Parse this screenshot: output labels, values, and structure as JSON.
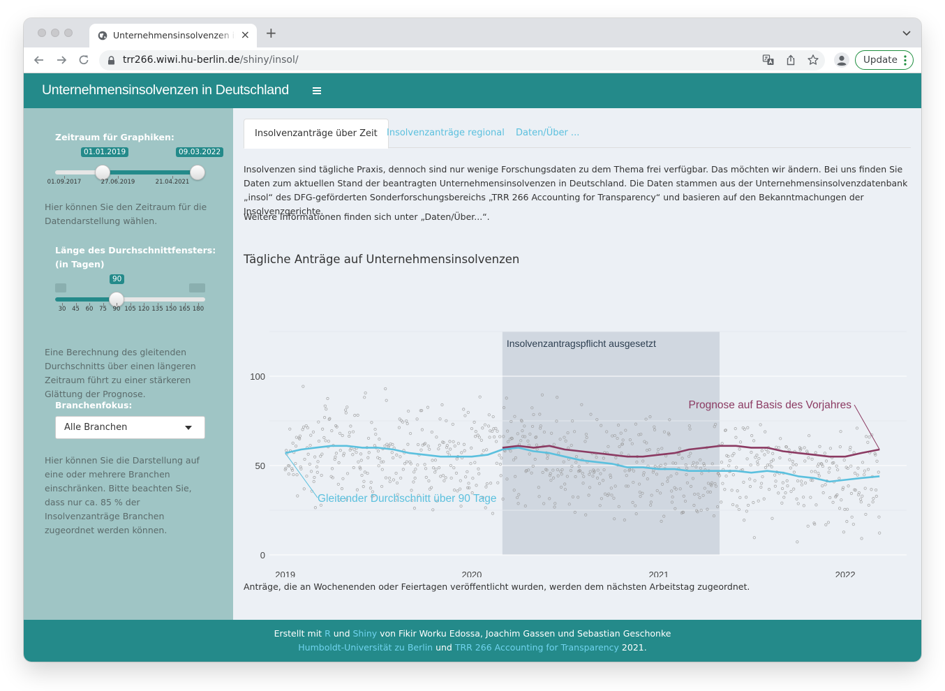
{
  "browser": {
    "tab_title": "Unternehmensinsolvenzen in Deutschland",
    "tab_close": "×",
    "new_tab": "+",
    "url_host": "trr266.wiwi.hu-berlin.de",
    "url_path": "/shiny/insol/",
    "update_label": "Update"
  },
  "app": {
    "title": "Unternehmensinsolvenzen in Deutschland"
  },
  "sidebar": {
    "date_range": {
      "label": "Zeitraum für Graphiken:",
      "from": "01.01.2019",
      "to": "09.03.2022",
      "ticks": [
        "01.09.2017",
        "27.06.2019",
        "21.04.2021"
      ],
      "help": "Hier können Sie den Zeitraum für die Datendarstellung wählen."
    },
    "window": {
      "label_line1": "Länge des Durchschnittfensters:",
      "label_line2": "(in Tagen)",
      "value": "90",
      "ticks": [
        "30",
        "45",
        "60",
        "75",
        "90",
        "105",
        "120",
        "135",
        "150",
        "165",
        "180"
      ],
      "help": "Eine Berechnung des gleitenden Durchschnitts über einen längeren Zeitraum führt zu einer stärkeren Glättung der Prognose."
    },
    "branch": {
      "label": "Branchenfokus:",
      "value": "Alle Branchen",
      "help": "Hier können Sie die Darstellung auf eine oder mehrere Branchen einschränken. Bitte beachten Sie, dass nur ca. 85 % der Insolvenzanträge Branchen zugeordnet werden können."
    }
  },
  "main": {
    "tabs": [
      "Insolvenzanträge über Zeit",
      "Insolvenzanträge regional",
      "Daten/Über ..."
    ],
    "intro": "Insolvenzen sind tägliche Praxis, dennoch sind nur wenige Forschungsdaten zu dem Thema frei verfügbar. Das möchten wir ändern. Bei uns finden Sie Daten zum aktuellen Stand der beantragten Unternehmensinsolvenzen in Deutschland. Die Daten stammen aus der Unternehmensinsolvenzdatenbank „insol“ des DFG-geförderten Sonderforschungsbereichs „TRR 266 Accounting for Transparency“ und basieren auf den Bekanntmachungen der Insolvenzgerichte.",
    "more": "Weitere Informationen finden sich unter „Daten/Über...“.",
    "chart_title": "Tägliche Anträge auf Unternehmensinsolvenzen",
    "note": "Anträge, die an Wochenenden oder Feiertagen veröffentlicht wurden, werden dem nächsten Arbeitstag zugeordnet."
  },
  "footer": {
    "l1_a": "Erstellt mit ",
    "l1_r": "R",
    "l1_b": " und ",
    "l1_shiny": "Shiny",
    "l1_c": " von Fikir Worku Edossa, Joachim Gassen und Sebastian Geschonke",
    "l2_hu": "Humboldt-Universität zu Berlin",
    "l2_b": " und ",
    "l2_trr": "TRR 266 Accounting for Transparency",
    "l2_c": " 2021."
  },
  "colors": {
    "header": "#248a8a",
    "sidebar": "#9fc5c5",
    "moving_average": "#5bc0de",
    "forecast": "#8b3a62",
    "shaded_period": "#d0d7e0"
  },
  "chart_data": {
    "type": "line",
    "title": "Tägliche Anträge auf Unternehmensinsolvenzen",
    "x_ticks": [
      "2019",
      "2020",
      "2021",
      "2022"
    ],
    "y_ticks": [
      0,
      50,
      100
    ],
    "ylim": [
      0,
      125
    ],
    "xlim": [
      "2019-01-01",
      "2022-03-09"
    ],
    "shaded_region": {
      "label": "Insolvenzantragspflicht ausgesetzt",
      "start": "2020-03-01",
      "end": "2021-04-30"
    },
    "series": [
      {
        "name": "Gleitender Durchschnitt über 90 Tage",
        "color": "#5bc0de",
        "points": [
          [
            "2019-01-01",
            57
          ],
          [
            "2019-02-01",
            59
          ],
          [
            "2019-03-01",
            60
          ],
          [
            "2019-04-01",
            61
          ],
          [
            "2019-05-01",
            61
          ],
          [
            "2019-06-01",
            60
          ],
          [
            "2019-07-01",
            60
          ],
          [
            "2019-08-01",
            59
          ],
          [
            "2019-09-01",
            57
          ],
          [
            "2019-10-01",
            56
          ],
          [
            "2019-11-01",
            55
          ],
          [
            "2019-12-01",
            55
          ],
          [
            "2020-01-01",
            55
          ],
          [
            "2020-02-01",
            56
          ],
          [
            "2020-03-01",
            59
          ],
          [
            "2020-04-01",
            60
          ],
          [
            "2020-05-01",
            58
          ],
          [
            "2020-06-01",
            57
          ],
          [
            "2020-07-01",
            55
          ],
          [
            "2020-08-01",
            53
          ],
          [
            "2020-09-01",
            52
          ],
          [
            "2020-10-01",
            51
          ],
          [
            "2020-11-01",
            49
          ],
          [
            "2020-12-01",
            49
          ],
          [
            "2021-01-01",
            48
          ],
          [
            "2021-02-01",
            48
          ],
          [
            "2021-03-01",
            47
          ],
          [
            "2021-04-01",
            47
          ],
          [
            "2021-05-01",
            47
          ],
          [
            "2021-06-01",
            47
          ],
          [
            "2021-07-01",
            46
          ],
          [
            "2021-08-01",
            47
          ],
          [
            "2021-09-01",
            46
          ],
          [
            "2021-10-01",
            44
          ],
          [
            "2021-11-01",
            43
          ],
          [
            "2021-12-01",
            41
          ],
          [
            "2022-01-01",
            42
          ],
          [
            "2022-02-01",
            43
          ],
          [
            "2022-03-09",
            44
          ]
        ]
      },
      {
        "name": "Prognose auf Basis des Vorjahres",
        "color": "#8b3a62",
        "points": [
          [
            "2020-03-01",
            60
          ],
          [
            "2020-04-01",
            61
          ],
          [
            "2020-05-01",
            60
          ],
          [
            "2020-06-01",
            61
          ],
          [
            "2020-07-01",
            59
          ],
          [
            "2020-08-01",
            58
          ],
          [
            "2020-09-01",
            57
          ],
          [
            "2020-10-01",
            56
          ],
          [
            "2020-11-01",
            55
          ],
          [
            "2020-12-01",
            55
          ],
          [
            "2021-01-01",
            56
          ],
          [
            "2021-02-01",
            57
          ],
          [
            "2021-03-01",
            59
          ],
          [
            "2021-04-01",
            60
          ],
          [
            "2021-05-01",
            61
          ],
          [
            "2021-06-01",
            61
          ],
          [
            "2021-07-01",
            60
          ],
          [
            "2021-08-01",
            60
          ],
          [
            "2021-09-01",
            58
          ],
          [
            "2021-10-01",
            57
          ],
          [
            "2021-11-01",
            56
          ],
          [
            "2021-12-01",
            55
          ],
          [
            "2022-01-01",
            55
          ],
          [
            "2022-02-01",
            57
          ],
          [
            "2022-03-09",
            59
          ]
        ]
      }
    ],
    "scatter": {
      "name": "Tägliche Anträge",
      "note": "daily counts, approx. 15–125, shown as grey dots"
    }
  }
}
